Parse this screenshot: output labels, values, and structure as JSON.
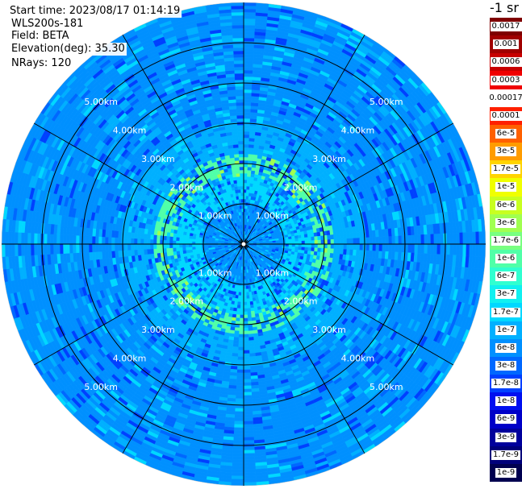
{
  "header": {
    "start_time": "Start time: 2023/08/17 01:14:19",
    "instrument": "WLS200s-181",
    "field": "Field: BETA",
    "elevation": "Elevation(deg): 35.30",
    "nrays": "NRays: 120"
  },
  "colorbar": {
    "unit": "-1 sr",
    "levels": [
      {
        "label": "0.0017",
        "color": "#7f0000"
      },
      {
        "label": "0.001",
        "color": "#a00000"
      },
      {
        "label": "0.0006",
        "color": "#c80000"
      },
      {
        "label": "0.0003",
        "color": "#f00000"
      },
      {
        "label": "0.00017",
        "color": "#ffffff"
      },
      {
        "label": "0.0001",
        "color": "#ff2000"
      },
      {
        "label": "6e-5",
        "color": "#ff6000"
      },
      {
        "label": "3e-5",
        "color": "#ff9c00"
      },
      {
        "label": "1.7e-5",
        "color": "#ffd400"
      },
      {
        "label": "1e-5",
        "color": "#f0ff00"
      },
      {
        "label": "6e-6",
        "color": "#c8ff20"
      },
      {
        "label": "3e-6",
        "color": "#a0ff50"
      },
      {
        "label": "1.7e-6",
        "color": "#78ff80"
      },
      {
        "label": "1e-6",
        "color": "#50ffa8"
      },
      {
        "label": "6e-7",
        "color": "#30ffd0"
      },
      {
        "label": "3e-7",
        "color": "#10f0f0"
      },
      {
        "label": "1.7e-7",
        "color": "#00d8ff"
      },
      {
        "label": "1e-7",
        "color": "#00b0ff"
      },
      {
        "label": "6e-8",
        "color": "#0090ff"
      },
      {
        "label": "3e-8",
        "color": "#0068ff"
      },
      {
        "label": "1.7e-8",
        "color": "#0040ff"
      },
      {
        "label": "1e-8",
        "color": "#0010f0"
      },
      {
        "label": "6e-9",
        "color": "#0000c8"
      },
      {
        "label": "3e-9",
        "color": "#00009c"
      },
      {
        "label": "1.7e-9",
        "color": "#00007a"
      },
      {
        "label": "1e-9",
        "color": "#000050"
      }
    ]
  },
  "chart_data": {
    "type": "heatmap",
    "projection": "polar PPI",
    "field": "BETA",
    "elevation_deg": 35.3,
    "nrays": 120,
    "range_rings_km": [
      1.0,
      2.0,
      3.0,
      4.0,
      5.0
    ],
    "max_range_km": 5.0,
    "ring_labels": [
      "1.00km",
      "2.00km",
      "3.00km",
      "4.00km",
      "5.00km"
    ],
    "spoke_count": 12,
    "color_scale": "log",
    "value_range": [
      1e-09,
      0.0017
    ],
    "dominant_value_by_range": [
      {
        "range_km": 0.5,
        "beta": 6e-08
      },
      {
        "range_km": 1.5,
        "beta": 1.7e-07
      },
      {
        "range_km": 2.0,
        "beta": 1e-06
      },
      {
        "range_km": 2.5,
        "beta": 1e-07
      },
      {
        "range_km": 3.5,
        "beta": 6e-08
      },
      {
        "range_km": 4.5,
        "beta": 6e-08
      }
    ],
    "grid": true
  }
}
